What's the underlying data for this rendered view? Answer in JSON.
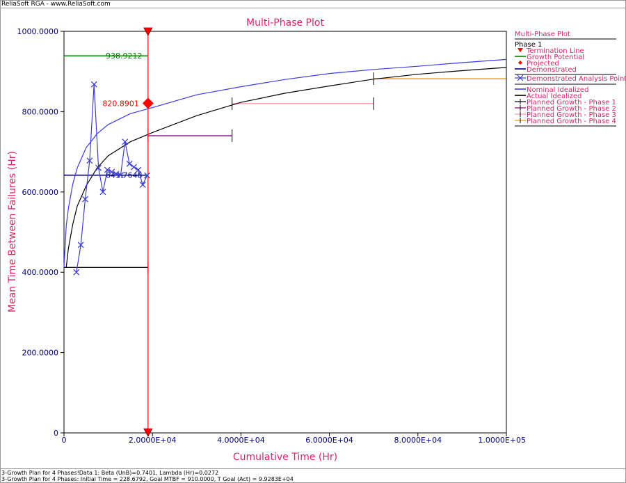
{
  "header": {
    "text": "ReliaSoft RGA - www.ReliaSoft.com"
  },
  "footer": {
    "line1": "3-Growth Plan for 4 Phases!Data 1: Beta (UnB)=0.7401, Lambda (Hr)=0.0272",
    "line2": "3-Growth Plan for 4 Phases: Initial Time = 228.6792, Goal MTBF = 910.0000, T Goal (Act) = 9.9283E+04"
  },
  "colors": {
    "title": "#e0245e",
    "axis_text": "#000080",
    "termination": "#ff0000",
    "growth_potential": "#008000",
    "projected": "#ff0000",
    "demonstrated": "#000080",
    "analysis_points": "#3a3ad8",
    "nominal": "#3a3ae8",
    "actual": "#000000",
    "phase1": "#000000",
    "phase2": "#800080",
    "phase3": "#ff9aaa",
    "phase4": "#e8a000"
  },
  "chart_data": {
    "type": "line",
    "title": "Multi-Phase Plot",
    "xlabel": "Cumulative Time (Hr)",
    "ylabel": "Mean Time Between Failures (Hr)",
    "xlim": [
      0,
      100000
    ],
    "ylim": [
      0,
      1000
    ],
    "grid": false,
    "x_ticks": [
      0,
      20000,
      40000,
      60000,
      80000,
      100000
    ],
    "x_tick_labels": [
      "0",
      "2.0000E+04",
      "4.0000E+04",
      "6.0000E+04",
      "8.0000E+04",
      "1.0000E+05"
    ],
    "y_ticks": [
      0,
      200,
      400,
      600,
      800,
      1000
    ],
    "y_tick_labels": [
      "0",
      "200.0000",
      "400.0000",
      "600.0000",
      "800.0000",
      "1000.0000"
    ],
    "termination_line": {
      "x": 19000
    },
    "growth_potential": {
      "value": 938.9212,
      "label": "938.9212",
      "x_range": [
        0,
        19000
      ]
    },
    "projected": {
      "x": 19000,
      "value": 820.8901,
      "label": "820.8901"
    },
    "demonstrated": {
      "value": 641.7648,
      "label": "641.7648",
      "x_range": [
        0,
        19000
      ]
    },
    "analysis_points": {
      "x": [
        2800,
        3800,
        4800,
        5800,
        6800,
        7800,
        8800,
        9800,
        10800,
        11800,
        12800,
        13800,
        14800,
        15800,
        16800,
        17800,
        18800
      ],
      "y": [
        400,
        468,
        582,
        678,
        868,
        660,
        600,
        655,
        650,
        645,
        642,
        725,
        670,
        662,
        655,
        618,
        641
      ]
    },
    "nominal_idealized": {
      "x": [
        0,
        500,
        1000,
        2000,
        3000,
        5000,
        7500,
        10000,
        15000,
        20000,
        30000,
        40000,
        50000,
        60000,
        70000,
        80000,
        90000,
        100000
      ],
      "y": [
        412,
        515,
        560,
        620,
        660,
        710,
        745,
        768,
        795,
        810,
        842,
        862,
        880,
        895,
        905,
        913,
        922,
        930
      ]
    },
    "actual_idealized": {
      "x": [
        500,
        1000,
        2000,
        3000,
        5000,
        7500,
        10000,
        15000,
        20000,
        30000,
        40000,
        50000,
        60000,
        70000,
        80000,
        90000,
        100000
      ],
      "y": [
        412,
        460,
        520,
        565,
        615,
        660,
        690,
        725,
        748,
        790,
        823,
        846,
        864,
        881,
        893,
        902,
        910
      ]
    },
    "planned_growth": [
      {
        "phase": "Phase 1",
        "x_range": [
          0,
          19000
        ],
        "value": 412
      },
      {
        "phase": "Phase 2",
        "x_range": [
          19000,
          38000
        ],
        "value": 740
      },
      {
        "phase": "Phase 3",
        "x_range": [
          38000,
          70000
        ],
        "value": 820
      },
      {
        "phase": "Phase 4",
        "x_range": [
          70000,
          100000
        ],
        "value": 882
      }
    ],
    "legend": {
      "placement": "right",
      "title": "Multi-Phase Plot",
      "group": "Phase 1",
      "items": [
        {
          "label": "Termination Line",
          "marker": "triangle-down",
          "color": "#ff0000"
        },
        {
          "label": "Growth Potential",
          "marker": "line",
          "color": "#008000"
        },
        {
          "label": "Projected",
          "marker": "diamond",
          "color": "#ff0000"
        },
        {
          "label": "Demonstrated",
          "marker": "line",
          "color": "#000080"
        },
        {
          "label": "Demonstrated Analysis Points",
          "marker": "x-line",
          "color": "#3a3ad8"
        },
        {
          "label": "Nominal Idealized",
          "marker": "line",
          "color": "#3a3ae8"
        },
        {
          "label": "Actual Idealized",
          "marker": "line",
          "color": "#000000"
        },
        {
          "label": "Planned Growth - Phase 1",
          "marker": "cross",
          "color": "#000000"
        },
        {
          "label": "Planned Growth - Phase 2",
          "marker": "cross",
          "color": "#800080"
        },
        {
          "label": "Planned Growth - Phase 3",
          "marker": "cross",
          "color": "#ff9aaa"
        },
        {
          "label": "Planned Growth - Phase 4",
          "marker": "cross",
          "color": "#e8a000"
        }
      ]
    }
  }
}
